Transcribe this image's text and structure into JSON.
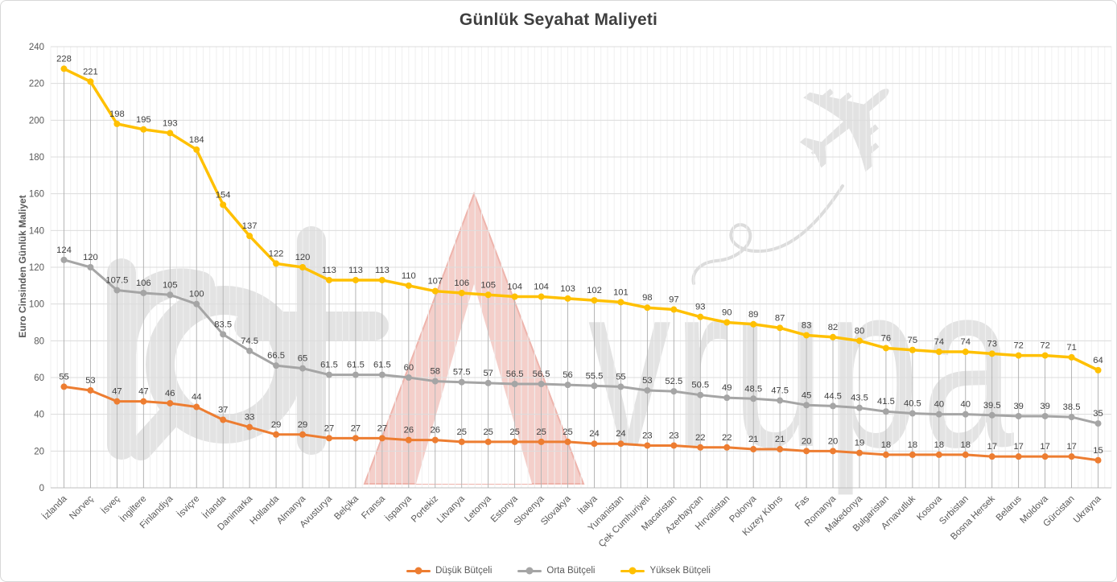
{
  "colors": {
    "low_budget": "#ED7D31",
    "mid_budget": "#A5A5A5",
    "high_budget": "#FFC000",
    "major_gridline": "#DCDCDC",
    "minor_gridline": "#F0F0F0",
    "drop_line": "#A8A8A8",
    "axis_line": "#BFBFBF",
    "tick_text": "#595959",
    "label_text": "#404040",
    "title_text": "#3F3F3F",
    "watermark_gray": "#E3E3E3",
    "watermark_pink": "#F4CFCA"
  },
  "watermark": {
    "brand": "rotAvrupa",
    "prefix_letters": "rot",
    "accent_letter": "A",
    "suffix": "vrupa",
    "airplane_icon": "airplane-icon"
  },
  "chart_data": {
    "type": "line",
    "title": "Günlük Seyahat Maliyeti",
    "ylabel": "Euro Cinsinden Günlük Maliyet",
    "xlabel": "",
    "ylim": [
      0,
      240
    ],
    "yticks": [
      0,
      20,
      40,
      60,
      80,
      100,
      120,
      140,
      160,
      180,
      200,
      220,
      240
    ],
    "grid": true,
    "legend_position": "bottom",
    "x_label_rotation_deg": 45,
    "categories": [
      "İzlanda",
      "Norveç",
      "İsveç",
      "İngiltere",
      "Finlandiya",
      "İsviçre",
      "İrlanda",
      "Danimarka",
      "Hollanda",
      "Almanya",
      "Avusturya",
      "Belçika",
      "Fransa",
      "İspanya",
      "Portekiz",
      "Litvanya",
      "Letonya",
      "Estonya",
      "Slovenya",
      "Slovakya",
      "İtalya",
      "Yunanistan",
      "Çek Cumhuriyeti",
      "Macaristan",
      "Azerbaycan",
      "Hırvatistan",
      "Polonya",
      "Kuzey Kıbrıs",
      "Fas",
      "Romanya",
      "Makedonya",
      "Bulgaristan",
      "Arnavutluk",
      "Kosova",
      "Sırbistan",
      "Bosna Hersek",
      "Belarus",
      "Moldova",
      "Gürcistan",
      "Ukrayna"
    ],
    "series": [
      {
        "name": "Düşük Bütçeli",
        "color": "#ED7D31",
        "values": [
          55,
          53,
          47,
          47,
          46,
          44,
          37,
          33,
          29,
          29,
          27,
          27,
          27,
          26,
          26,
          25,
          25,
          25,
          25,
          25,
          24,
          24,
          23,
          23,
          22,
          22,
          21,
          21,
          20,
          20,
          19,
          18,
          18,
          18,
          18,
          17,
          17,
          17,
          17,
          15
        ]
      },
      {
        "name": "Orta Bütçeli",
        "color": "#A5A5A5",
        "values": [
          124,
          120,
          107.5,
          106,
          105,
          100,
          83.5,
          74.5,
          66.5,
          65,
          61.5,
          61.5,
          61.5,
          60,
          58,
          57.5,
          57,
          56.5,
          56.5,
          56,
          55.5,
          55,
          53,
          52.5,
          50.5,
          49,
          48.5,
          47.5,
          45,
          44.5,
          43.5,
          41.5,
          40.5,
          40,
          40,
          39.5,
          39,
          39,
          38.5,
          35
        ]
      },
      {
        "name": "Yüksek Bütçeli",
        "color": "#FFC000",
        "values": [
          228,
          221,
          198,
          195,
          193,
          184,
          154,
          137,
          122,
          120,
          113,
          113,
          113,
          110,
          107,
          106,
          105,
          104,
          104,
          103,
          102,
          101,
          98,
          97,
          93,
          90,
          89,
          87,
          83,
          82,
          80,
          76,
          75,
          74,
          74,
          73,
          72,
          72,
          71,
          64
        ]
      }
    ]
  }
}
